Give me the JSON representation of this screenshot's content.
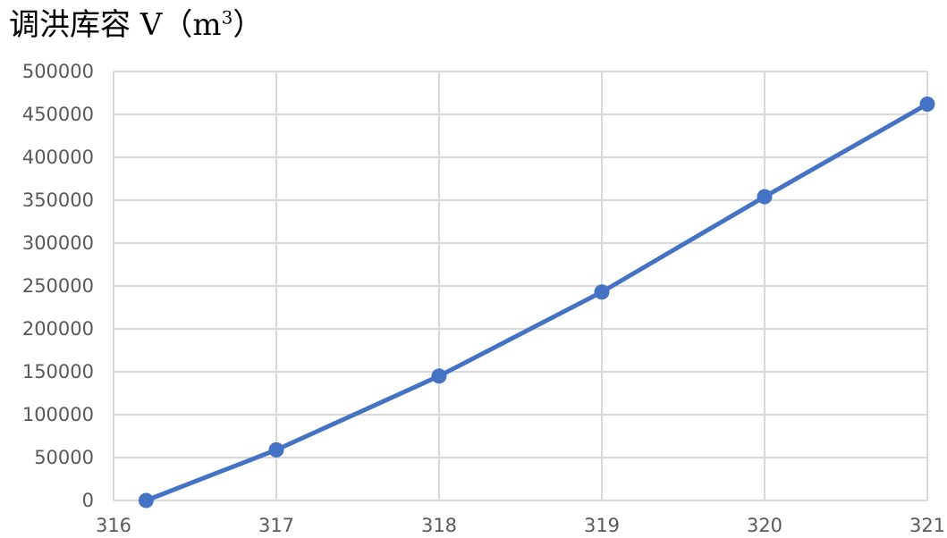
{
  "chart_data": {
    "type": "line",
    "title": "调洪库容 V（m",
    "title_superscript": "3",
    "title_suffix": "）",
    "xlabel": "",
    "ylabel": "",
    "x_ticks": [
      316,
      317,
      318,
      319,
      320,
      321
    ],
    "y_ticks": [
      0,
      50000,
      100000,
      150000,
      200000,
      250000,
      300000,
      350000,
      400000,
      450000,
      500000
    ],
    "xlim": [
      316,
      321
    ],
    "ylim": [
      0,
      500000
    ],
    "grid": true,
    "legend": "none",
    "series": [
      {
        "x": [
          316.2,
          317,
          318,
          319,
          320,
          321
        ],
        "y": [
          0,
          59000,
          145000,
          243000,
          354000,
          462000
        ],
        "color": "#4472C4"
      }
    ],
    "colors": {
      "series": "#4472C4",
      "grid": "#d9d9d9",
      "tick_text": "#595959"
    }
  }
}
